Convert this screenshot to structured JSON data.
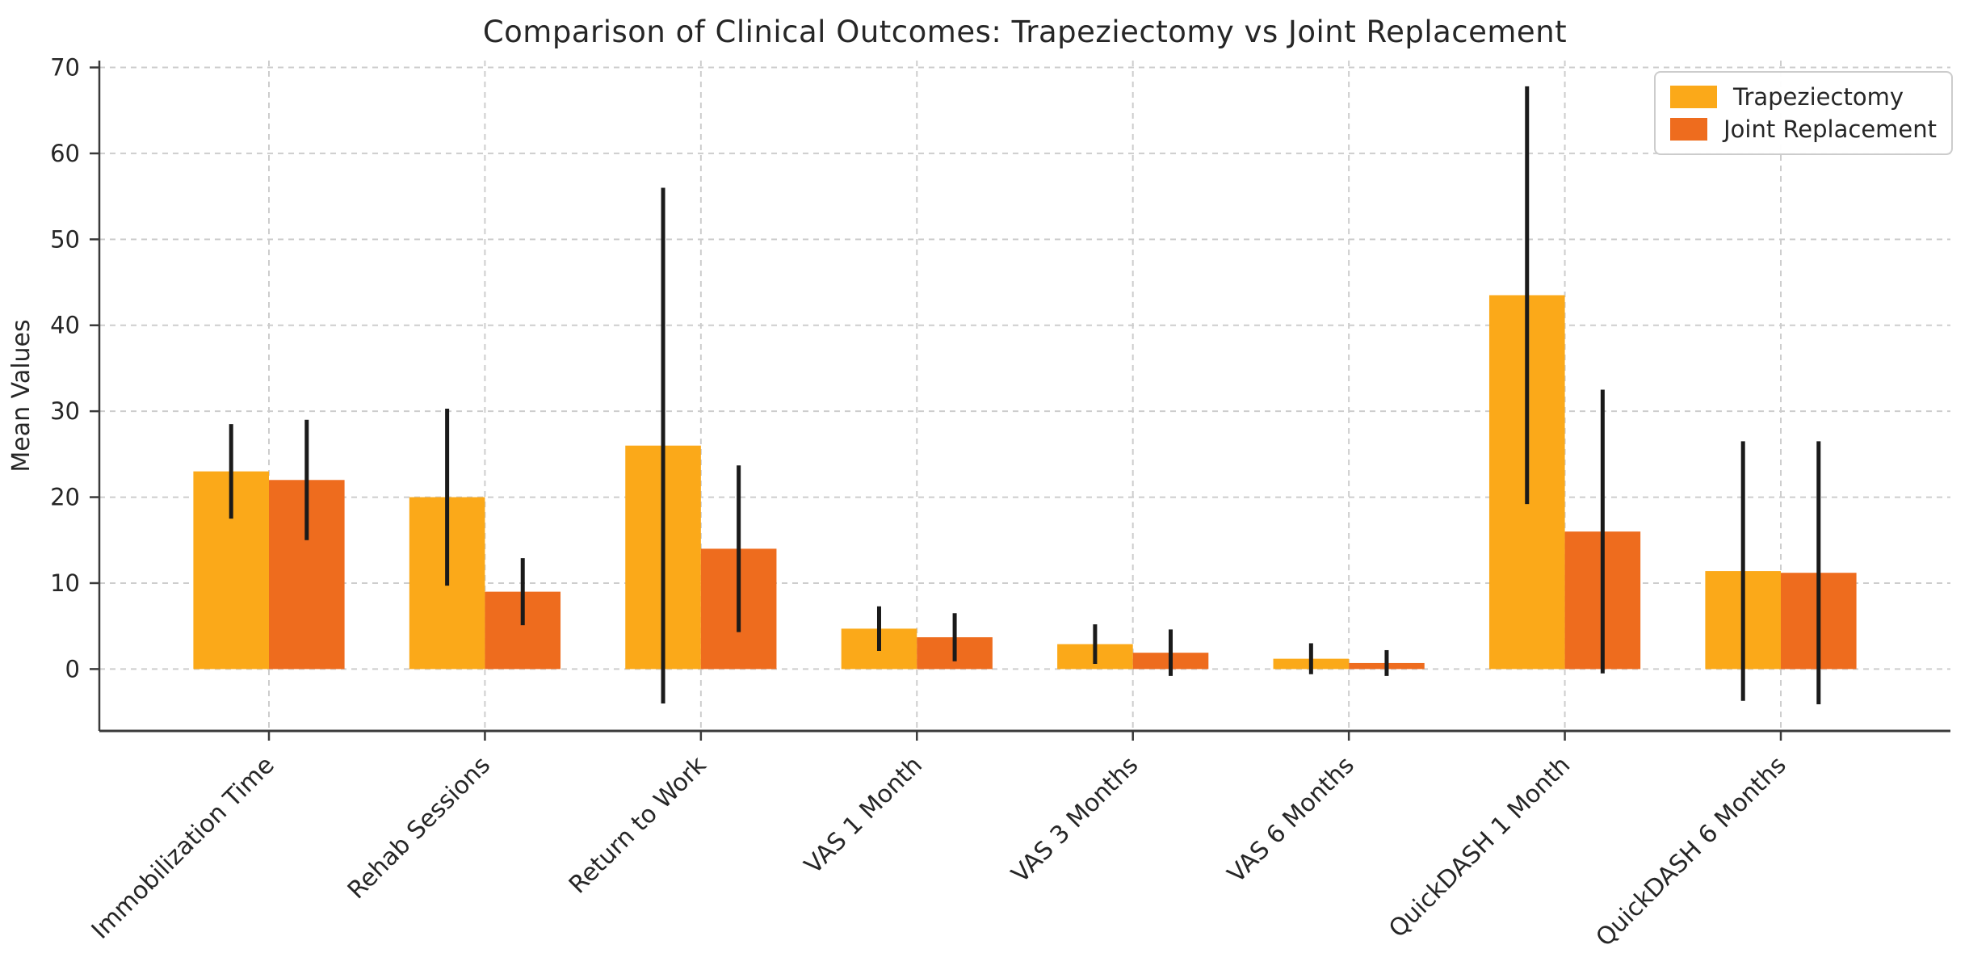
{
  "chart_data": {
    "type": "bar",
    "title": "Comparison of Clinical Outcomes: Trapeziectomy vs Joint Replacement",
    "xlabel": "",
    "ylabel": "Mean Values",
    "categories": [
      "Immobilization Time",
      "Rehab Sessions",
      "Return to Work",
      "VAS 1 Month",
      "VAS 3 Months",
      "VAS 6 Months",
      "QuickDASH 1 Month",
      "QuickDASH 6 Months"
    ],
    "series": [
      {
        "name": "Trapeziectomy",
        "color": "#FBA919",
        "values": [
          23,
          20,
          26,
          4.7,
          2.9,
          1.2,
          43.5,
          11.4
        ],
        "errors": [
          5.5,
          10.3,
          30,
          2.6,
          2.3,
          1.8,
          24.3,
          15.1
        ]
      },
      {
        "name": "Joint Replacement",
        "color": "#EE6C1E",
        "values": [
          22,
          9,
          14,
          3.7,
          1.9,
          0.7,
          16,
          11.2
        ],
        "errors": [
          7,
          3.9,
          9.7,
          2.8,
          2.7,
          1.5,
          16.5,
          15.3
        ]
      }
    ],
    "yticks": [
      0,
      10,
      20,
      30,
      40,
      50,
      60,
      70
    ],
    "ylim": [
      -7.2,
      70.8
    ],
    "grid": true,
    "legend_position": "upper right",
    "error_bar_color": "#1a1a1a",
    "gridline_color": "#cdcdcd",
    "spine_color": "#3a3a3a",
    "text_color": "#262626"
  }
}
